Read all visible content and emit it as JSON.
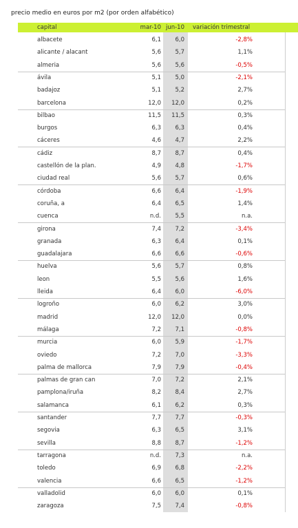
{
  "title": "precio medio en euros por m2 (por orden alfabético)",
  "table": {
    "header": [
      "capital",
      "mar-10",
      "jun-10",
      "variación trimestral"
    ],
    "rows": [
      [
        "albacete",
        "6,1",
        "6,0",
        "-2,8%"
      ],
      [
        "alicante / alacant",
        "5,6",
        "5,7",
        "1,1%"
      ],
      [
        "almeria",
        "5,6",
        "5,6",
        "-0,5%"
      ],
      [
        "ávila",
        "5,1",
        "5,0",
        "-2,1%"
      ],
      [
        "badajoz",
        "5,1",
        "5,2",
        "2,7%"
      ],
      [
        "barcelona",
        "12,0",
        "12,0",
        "0,2%"
      ],
      [
        "bilbao",
        "11,5",
        "11,5",
        "0,3%"
      ],
      [
        "burgos",
        "6,3",
        "6,3",
        "0,4%"
      ],
      [
        "cáceres",
        "4,6",
        "4,7",
        "2,2%"
      ],
      [
        "cádiz",
        "8,7",
        "8,7",
        "0,4%"
      ],
      [
        "castellón de la plan.",
        "4,9",
        "4,8",
        "-1,7%"
      ],
      [
        "ciudad real",
        "5,6",
        "5,7",
        "0,6%"
      ],
      [
        "córdoba",
        "6,6",
        "6,4",
        "-1,9%"
      ],
      [
        "coruña, a",
        "6,4",
        "6,5",
        "1,4%"
      ],
      [
        "cuenca",
        "n.d.",
        "5,5",
        "n.a."
      ],
      [
        "girona",
        "7,4",
        "7,2",
        "-3,4%"
      ],
      [
        "granada",
        "6,3",
        "6,4",
        "0,1%"
      ],
      [
        "guadalajara",
        "6,6",
        "6,6",
        "-0,6%"
      ],
      [
        "huelva",
        "5,6",
        "5,7",
        "0,8%"
      ],
      [
        "leon",
        "5,5",
        "5,6",
        "1,6%"
      ],
      [
        "lleida",
        "6,4",
        "6,0",
        "-6,0%"
      ],
      [
        "logroño",
        "6,0",
        "6,2",
        "3,0%"
      ],
      [
        "madrid",
        "12,0",
        "12,0",
        "0,0%"
      ],
      [
        "málaga",
        "7,2",
        "7,1",
        "-0,8%"
      ],
      [
        "murcia",
        "6,0",
        "5,9",
        "-1,7%"
      ],
      [
        "oviedo",
        "7,2",
        "7,0",
        "-3,3%"
      ],
      [
        "palma de mallorca",
        "7,9",
        "7,9",
        "-0,4%"
      ],
      [
        "palmas de gran can",
        "7,0",
        "7,2",
        "2,1%"
      ],
      [
        "pamplona/iruña",
        "8,2",
        "8,4",
        "2,7%"
      ],
      [
        "salamanca",
        "6,1",
        "6,2",
        "0,3%"
      ],
      [
        "santander",
        "7,7",
        "7,7",
        "-0,3%"
      ],
      [
        "segovia",
        "6,3",
        "6,5",
        "3,1%"
      ],
      [
        "sevilla",
        "8,8",
        "8,7",
        "-1,2%"
      ],
      [
        "tarragona",
        "n.d.",
        "7,3",
        "n.a."
      ],
      [
        "toledo",
        "6,9",
        "6,8",
        "-2,2%"
      ],
      [
        "valencia",
        "6,6",
        "6,5",
        "-1,2%"
      ],
      [
        "valladolid",
        "6,0",
        "6,0",
        "0,1%"
      ],
      [
        "zaragoza",
        "7,5",
        "7,4",
        "-0,8%"
      ]
    ]
  }
}
